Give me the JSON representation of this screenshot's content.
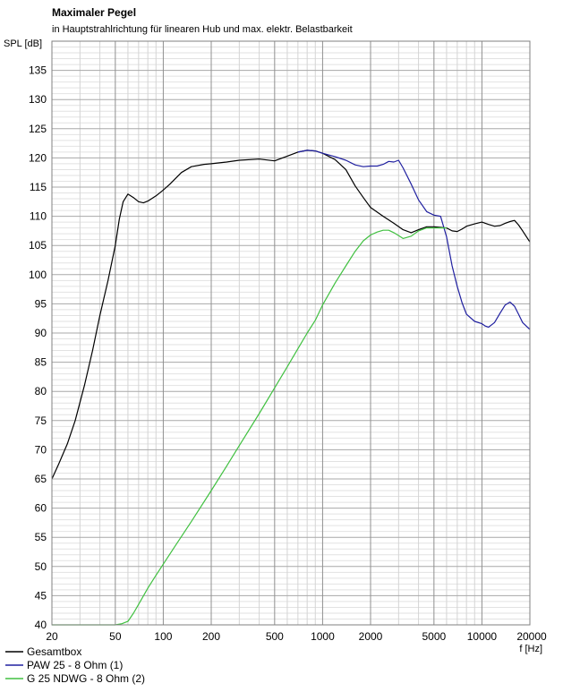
{
  "chart_data": {
    "type": "line",
    "title": "Maximaler Pegel",
    "subtitle": "in Hauptstrahlrichtung für linearen Hub und max. elektr. Belastbarkeit",
    "ylabel": "SPL [dB]",
    "xlabel": "f [Hz]",
    "xscale": "log",
    "xlim": [
      20,
      20000
    ],
    "ylim": [
      40,
      140
    ],
    "xticks": [
      20,
      50,
      100,
      200,
      500,
      1000,
      2000,
      5000,
      10000,
      20000
    ],
    "xtick_labels": [
      "20",
      "50",
      "100",
      "200",
      "500",
      "1000",
      "2000",
      "5000",
      "10000",
      "20000"
    ],
    "yticks": [
      40,
      45,
      50,
      55,
      60,
      65,
      70,
      75,
      80,
      85,
      90,
      95,
      100,
      105,
      110,
      115,
      120,
      125,
      130,
      135
    ],
    "ytick_labels": [
      "40",
      "45",
      "50",
      "55",
      "60",
      "65",
      "70",
      "75",
      "80",
      "85",
      "90",
      "95",
      "100",
      "105",
      "110",
      "115",
      "120",
      "125",
      "130",
      "135"
    ],
    "grid": true,
    "legend": "bottom-left",
    "series": [
      {
        "name": "Gesamtbox",
        "color": "#000000",
        "x": [
          20,
          22,
          25,
          28,
          32,
          36,
          40,
          45,
          50,
          53,
          56,
          60,
          65,
          70,
          75,
          80,
          90,
          100,
          110,
          130,
          150,
          180,
          200,
          250,
          300,
          400,
          500,
          600,
          700,
          800,
          900,
          1000,
          1200,
          1400,
          1600,
          1800,
          2000,
          2400,
          2800,
          3200,
          3600,
          4000,
          4500,
          5000,
          5500,
          6000,
          6500,
          7000,
          7500,
          8000,
          9000,
          10000,
          11000,
          12000,
          13000,
          14000,
          15000,
          16000,
          17000,
          18000,
          20000
        ],
        "y": [
          65,
          67.5,
          71,
          75,
          81,
          87,
          93,
          99,
          105,
          109.5,
          112.5,
          113.8,
          113.2,
          112.5,
          112.3,
          112.6,
          113.5,
          114.5,
          115.5,
          117.5,
          118.5,
          118.9,
          119,
          119.3,
          119.6,
          119.8,
          119.5,
          120.3,
          121,
          121.3,
          121.2,
          120.8,
          119.7,
          118,
          115.2,
          113.2,
          111.5,
          110,
          108.8,
          107.7,
          107.2,
          107.7,
          108.2,
          108.2,
          108.1,
          108,
          107.5,
          107.4,
          107.8,
          108.3,
          108.7,
          109,
          108.6,
          108.3,
          108.4,
          108.8,
          109.1,
          109.3,
          108.5,
          107.5,
          105.6
        ]
      },
      {
        "name": "PAW 25 - 8 Ohm (1)",
        "color": "#2020a0",
        "x": [
          700,
          800,
          900,
          1000,
          1200,
          1400,
          1600,
          1800,
          2000,
          2200,
          2400,
          2600,
          2800,
          3000,
          3200,
          3600,
          4000,
          4500,
          5000,
          5500,
          6000,
          6500,
          7000,
          7500,
          8000,
          9000,
          10000,
          10500,
          11000,
          12000,
          13000,
          14000,
          15000,
          16000,
          17000,
          18000,
          20000
        ],
        "y": [
          121,
          121.3,
          121.2,
          120.8,
          120.2,
          119.6,
          118.8,
          118.5,
          118.6,
          118.6,
          118.9,
          119.4,
          119.3,
          119.6,
          118.3,
          115.5,
          112.8,
          110.8,
          110.2,
          110,
          106.5,
          101.5,
          98,
          95.2,
          93.2,
          92,
          91.6,
          91.2,
          91,
          91.8,
          93.4,
          94.8,
          95.3,
          94.6,
          93.2,
          91.8,
          90.6
        ]
      },
      {
        "name": "G 25 NDWG - 8 Ohm (2)",
        "color": "#40c040",
        "x": [
          20,
          30,
          40,
          50,
          55,
          60,
          65,
          70,
          80,
          90,
          100,
          120,
          150,
          200,
          250,
          300,
          400,
          500,
          600,
          700,
          800,
          900,
          1000,
          1200,
          1400,
          1600,
          1800,
          2000,
          2200,
          2400,
          2600,
          2800,
          3000,
          3200,
          3600,
          4000,
          4500,
          5000,
          5500,
          6000
        ],
        "y": [
          40,
          40,
          40,
          40,
          40.2,
          40.6,
          42,
          43.5,
          46.3,
          48.5,
          50.4,
          53.7,
          57.7,
          63,
          67.2,
          70.7,
          76.2,
          80.6,
          84.2,
          87.3,
          90,
          92.2,
          94.8,
          98.6,
          101.5,
          104,
          105.8,
          106.8,
          107.3,
          107.6,
          107.6,
          107.2,
          106.7,
          106.2,
          106.6,
          107.5,
          108,
          108,
          108,
          108
        ]
      }
    ]
  }
}
